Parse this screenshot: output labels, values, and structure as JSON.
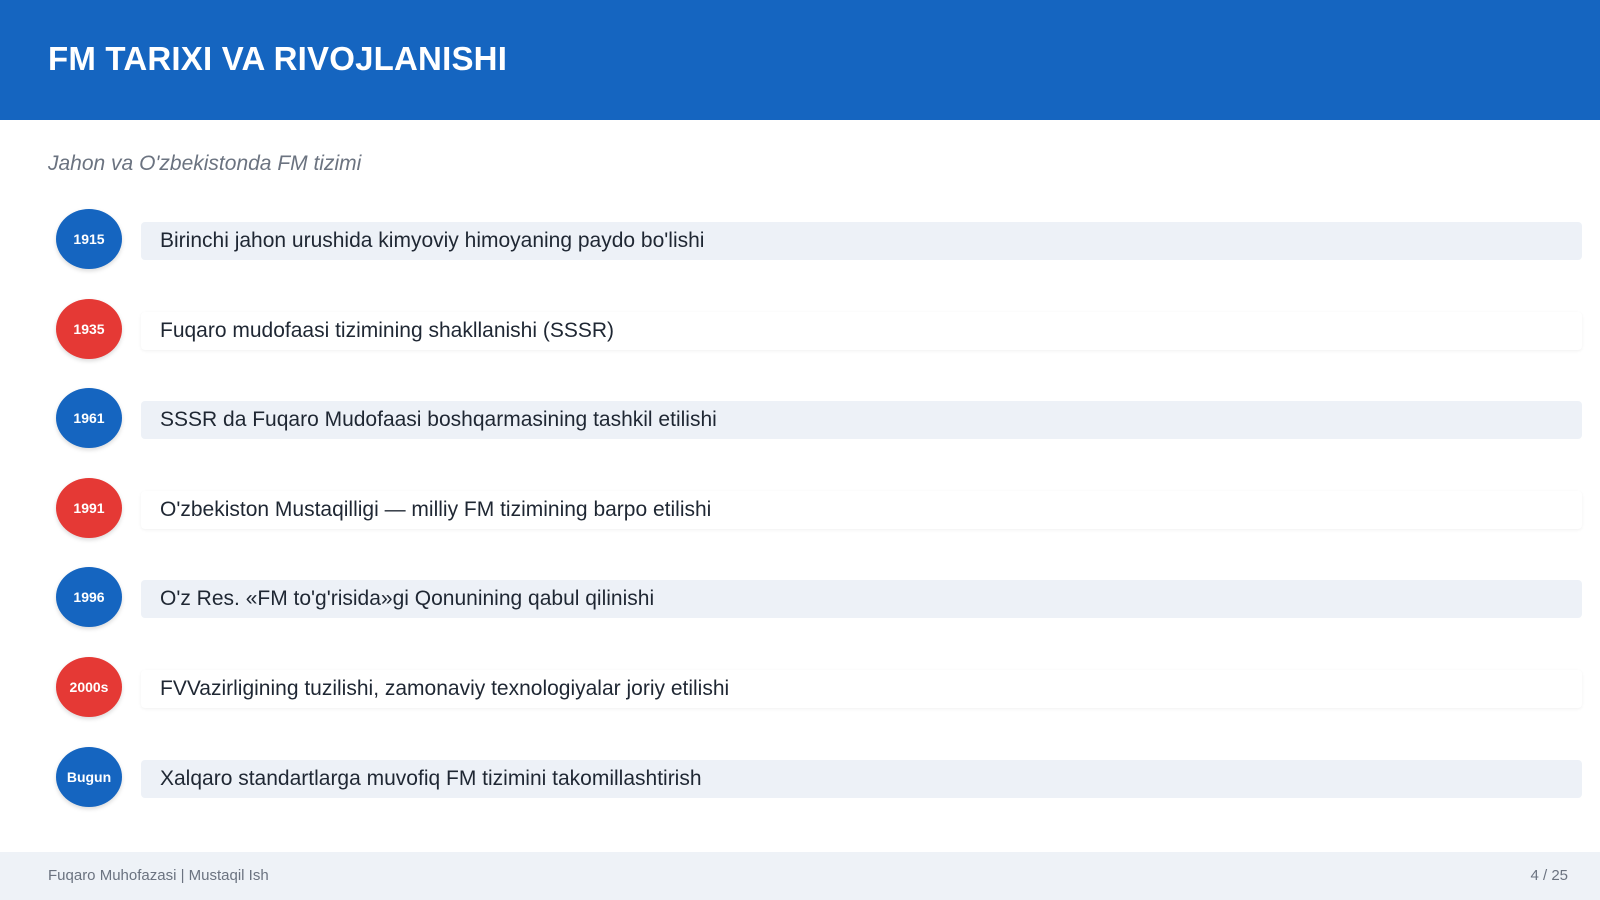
{
  "header": {
    "title": "FM TARIXI VA RIVOJLANISHI"
  },
  "subtitle": "Jahon va O'zbekistonda FM tizimi",
  "items": [
    {
      "year": "1915",
      "text": "Birinchi jahon urushida kimyoviy himoyaning paydo bo'lishi"
    },
    {
      "year": "1935",
      "text": "Fuqaro mudofaasi tizimining shakllanishi (SSSR)"
    },
    {
      "year": "1961",
      "text": "SSSR da Fuqaro Mudofaasi boshqarmasining tashkil etilishi"
    },
    {
      "year": "1991",
      "text": "O'zbekiston Mustaqilligi — milliy FM tizimining barpo etilishi"
    },
    {
      "year": "1996",
      "text": "O'z Res. «FM to'g'risida»gi Qonunining qabul qilinishi"
    },
    {
      "year": "2000s",
      "text": "FVVazirligining tuzilishi, zamonaviy texnologiyalar joriy etilishi"
    },
    {
      "year": "Bugun",
      "text": "Xalqaro standartlarga muvofiq FM tizimini takomillashtirish"
    }
  ],
  "footer": {
    "left": "Fuqaro Muhofazasi | Mustaqil Ish",
    "page": "4 / 25"
  }
}
